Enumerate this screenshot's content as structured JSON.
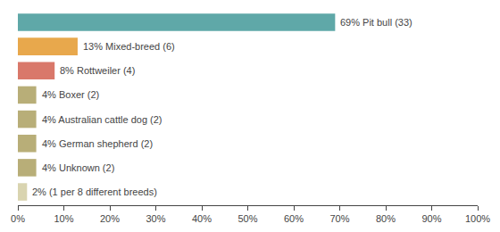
{
  "chart_data": {
    "type": "bar",
    "orientation": "horizontal",
    "categories": [
      "2% (1 per 8 different breeds)",
      "4% Unknown (2)",
      "4% German shepherd (2)",
      "4% Australian cattle dog (2)",
      "4% Boxer (2)",
      "8% Rottweiler (4)",
      "13% Mixed-breed (6)",
      "69% Pit bull (33)"
    ],
    "values": [
      2,
      4,
      4,
      4,
      4,
      8,
      13,
      69
    ],
    "colors": [
      "#d9d4b0",
      "#b8ae78",
      "#b8ae78",
      "#b8ae78",
      "#b8ae78",
      "#d9786a",
      "#e8a84c",
      "#5fa8a8"
    ],
    "xlim": [
      0,
      100
    ],
    "xticks": [
      {
        "value": 0,
        "label": "0%"
      },
      {
        "value": 10,
        "label": "10%"
      },
      {
        "value": 20,
        "label": "20%"
      },
      {
        "value": 30,
        "label": "30%"
      },
      {
        "value": 40,
        "label": "40%"
      },
      {
        "value": 50,
        "label": "50%"
      },
      {
        "value": 60,
        "label": "60%"
      },
      {
        "value": 70,
        "label": "70%"
      },
      {
        "value": 80,
        "label": "80%"
      },
      {
        "value": 90,
        "label": "90%"
      },
      {
        "value": 100,
        "label": "100%"
      }
    ],
    "grid": false,
    "tick_labels": "x"
  }
}
